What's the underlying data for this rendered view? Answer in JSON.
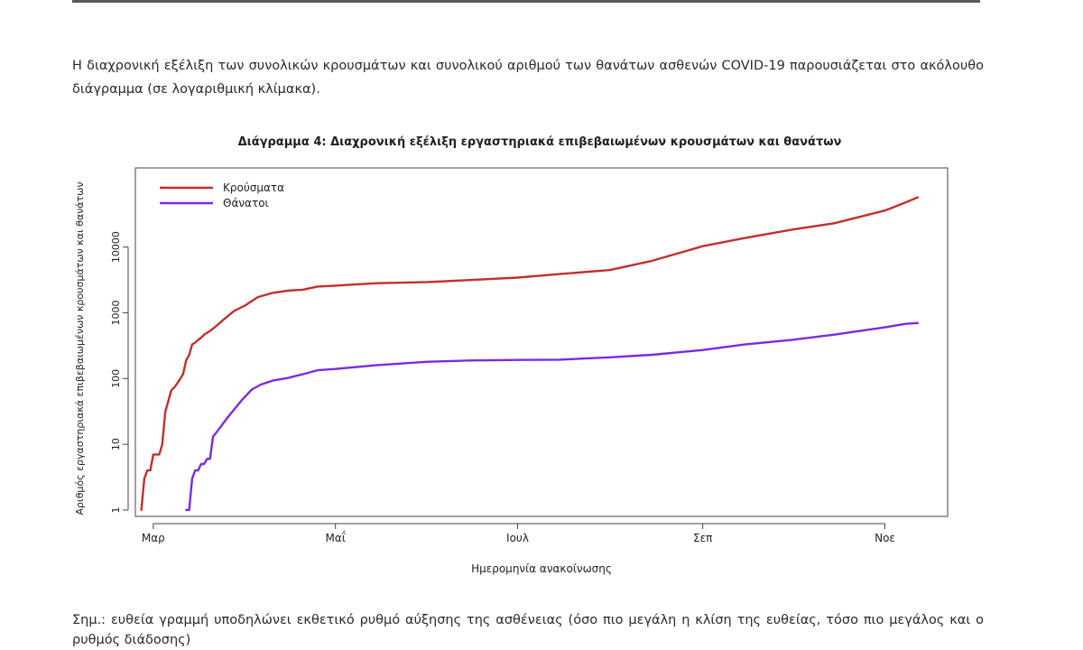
{
  "paragraph": "Η διαχρονική εξέλιξη των συνολικών κρουσμάτων και συνολικού αριθμού των θανάτων ασθενών COVID-19 παρουσιάζεται στο ακόλουθο διάγραμμα (σε λογαριθμική κλίμακα).",
  "note": "Σημ.: ευθεία γραμμή υποδηλώνει εκθετικό ρυθμό αύξησης της ασθένειας (όσο πιο μεγάλη η κλίση της ευθείας, τόσο πιο μεγάλος και ο ρυθμός διάδοσης)",
  "chart_data": {
    "type": "line",
    "title": "Διάγραμμα 4: Διαχρονική εξέλιξη εργαστηριακά επιβεβαιωμένων κρουσμάτων και θανάτων",
    "xlabel": "Ημερομηνία ανακοίνωσης",
    "ylabel": "Αριθμός εργαστηριακά επιβεβαιωμένων κρουσμάτων και θανάτων",
    "y_scale": "log",
    "ylim": [
      0.8,
      160000
    ],
    "xlim": [
      "2020-02-24",
      "2020-11-22"
    ],
    "yticks": [
      {
        "value": 1,
        "label": "1"
      },
      {
        "value": 10,
        "label": "10"
      },
      {
        "value": 100,
        "label": "100"
      },
      {
        "value": 1000,
        "label": "1000"
      },
      {
        "value": 10000,
        "label": "10000"
      }
    ],
    "xticks": [
      {
        "value": "2020-03-01",
        "label": "Μαρ"
      },
      {
        "value": "2020-05-01",
        "label": "Μαΐ"
      },
      {
        "value": "2020-07-01",
        "label": "Ιουλ"
      },
      {
        "value": "2020-09-01",
        "label": "Σεπ"
      },
      {
        "value": "2020-11-01",
        "label": "Νοε"
      }
    ],
    "grid": false,
    "legend": {
      "position": "top-left"
    },
    "series": [
      {
        "name": "Κρούσματα",
        "color": "#c0302f",
        "points": [
          [
            "2020-02-26",
            1
          ],
          [
            "2020-02-27",
            3
          ],
          [
            "2020-02-28",
            4
          ],
          [
            "2020-02-29",
            4
          ],
          [
            "2020-03-01",
            7
          ],
          [
            "2020-03-02",
            7
          ],
          [
            "2020-03-03",
            7
          ],
          [
            "2020-03-04",
            10
          ],
          [
            "2020-03-05",
            31
          ],
          [
            "2020-03-06",
            45
          ],
          [
            "2020-03-07",
            66
          ],
          [
            "2020-03-08",
            73
          ],
          [
            "2020-03-09",
            84
          ],
          [
            "2020-03-10",
            99
          ],
          [
            "2020-03-11",
            117
          ],
          [
            "2020-03-12",
            190
          ],
          [
            "2020-03-13",
            228
          ],
          [
            "2020-03-14",
            331
          ],
          [
            "2020-03-15",
            352
          ],
          [
            "2020-03-16",
            387
          ],
          [
            "2020-03-17",
            418
          ],
          [
            "2020-03-18",
            464
          ],
          [
            "2020-03-20",
            530
          ],
          [
            "2020-03-22",
            624
          ],
          [
            "2020-03-25",
            821
          ],
          [
            "2020-03-28",
            1061
          ],
          [
            "2020-04-01",
            1314
          ],
          [
            "2020-04-05",
            1735
          ],
          [
            "2020-04-10",
            2011
          ],
          [
            "2020-04-15",
            2170
          ],
          [
            "2020-04-20",
            2245
          ],
          [
            "2020-04-25",
            2506
          ],
          [
            "2020-05-01",
            2591
          ],
          [
            "2020-05-15",
            2819
          ],
          [
            "2020-06-01",
            2937
          ],
          [
            "2020-06-15",
            3148
          ],
          [
            "2020-07-01",
            3432
          ],
          [
            "2020-07-15",
            3883
          ],
          [
            "2020-08-01",
            4477
          ],
          [
            "2020-08-15",
            6177
          ],
          [
            "2020-09-01",
            10317
          ],
          [
            "2020-09-15",
            13730
          ],
          [
            "2020-10-01",
            18475
          ],
          [
            "2020-10-15",
            23000
          ],
          [
            "2020-11-01",
            36000
          ],
          [
            "2020-11-08",
            48000
          ],
          [
            "2020-11-12",
            57000
          ]
        ]
      },
      {
        "name": "Θάνατοι",
        "color": "#7a2be0",
        "points": [
          [
            "2020-03-12",
            1
          ],
          [
            "2020-03-13",
            1
          ],
          [
            "2020-03-14",
            3
          ],
          [
            "2020-03-15",
            4
          ],
          [
            "2020-03-16",
            4
          ],
          [
            "2020-03-17",
            5
          ],
          [
            "2020-03-18",
            5
          ],
          [
            "2020-03-19",
            6
          ],
          [
            "2020-03-20",
            6
          ],
          [
            "2020-03-21",
            13
          ],
          [
            "2020-03-23",
            17
          ],
          [
            "2020-03-26",
            26
          ],
          [
            "2020-03-29",
            38
          ],
          [
            "2020-03-31",
            49
          ],
          [
            "2020-04-03",
            68
          ],
          [
            "2020-04-06",
            81
          ],
          [
            "2020-04-10",
            93
          ],
          [
            "2020-04-15",
            102
          ],
          [
            "2020-04-20",
            116
          ],
          [
            "2020-04-25",
            134
          ],
          [
            "2020-05-01",
            140
          ],
          [
            "2020-05-15",
            160
          ],
          [
            "2020-06-01",
            180
          ],
          [
            "2020-06-15",
            188
          ],
          [
            "2020-07-01",
            192
          ],
          [
            "2020-07-15",
            194
          ],
          [
            "2020-08-01",
            210
          ],
          [
            "2020-08-15",
            230
          ],
          [
            "2020-09-01",
            272
          ],
          [
            "2020-09-15",
            330
          ],
          [
            "2020-10-01",
            388
          ],
          [
            "2020-10-15",
            465
          ],
          [
            "2020-11-01",
            600
          ],
          [
            "2020-11-08",
            680
          ],
          [
            "2020-11-12",
            700
          ]
        ]
      }
    ]
  }
}
